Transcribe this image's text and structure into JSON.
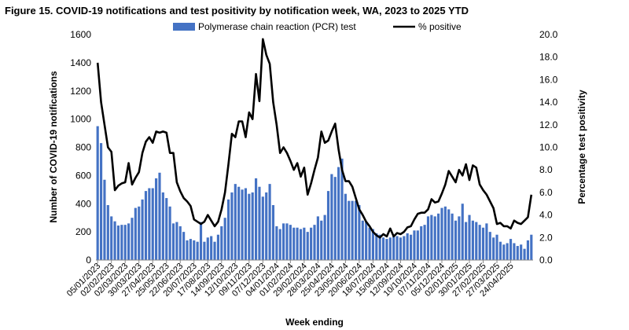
{
  "chart_data": {
    "type": "bar+line",
    "title": "Figure 15. COVID-19 notifications and test positivity by notification week, WA, 2023 to 2025 YTD",
    "xlabel": "Week ending",
    "ylabel": "Number of COVID-19 notifications",
    "y2label": "Percentage test positivity",
    "ylim": [
      0,
      1600
    ],
    "y2lim": [
      0,
      20
    ],
    "yticks": [
      "0",
      "200",
      "400",
      "600",
      "800",
      "1000",
      "1200",
      "1400",
      "1600"
    ],
    "y2ticks": [
      "0.0",
      "2.0",
      "4.0",
      "6.0",
      "8.0",
      "10.0",
      "12.0",
      "14.0",
      "16.0",
      "18.0",
      "20.0"
    ],
    "x_tick_labels": [
      "05/01/2023",
      "02/02/2023",
      "02/03/2023",
      "30/03/2023",
      "27/04/2023",
      "25/05/2023",
      "22/06/2023",
      "20/07/2023",
      "17/08/2023",
      "14/09/2023",
      "12/10/2023",
      "09/11/2023",
      "07/12/2023",
      "04/01/2024",
      "01/02/2024",
      "29/02/2024",
      "28/03/2024",
      "25/04/2024",
      "23/05/2024",
      "20/06/2024",
      "18/07/2024",
      "15/08/2024",
      "12/09/2024",
      "10/10/2024",
      "07/11/2024",
      "05/12/2024",
      "02/01/2025",
      "30/01/2025",
      "27/02/2025",
      "27/03/2025",
      "24/04/2025"
    ],
    "grid": false,
    "legend_position": "top-center",
    "series": [
      {
        "name": "Polymerase chain reaction (PCR) test",
        "type": "bar",
        "axis": "left",
        "color": "#4472C4",
        "values": [
          950,
          830,
          570,
          390,
          310,
          275,
          245,
          250,
          250,
          260,
          300,
          370,
          380,
          430,
          490,
          510,
          510,
          580,
          620,
          480,
          440,
          380,
          260,
          270,
          240,
          200,
          140,
          150,
          140,
          130,
          270,
          130,
          160,
          170,
          130,
          180,
          240,
          300,
          430,
          480,
          540,
          520,
          500,
          510,
          470,
          480,
          580,
          520,
          450,
          480,
          540,
          390,
          240,
          220,
          260,
          260,
          250,
          230,
          230,
          220,
          230,
          200,
          230,
          250,
          310,
          280,
          320,
          490,
          610,
          590,
          660,
          720,
          470,
          420,
          420,
          420,
          390,
          280,
          270,
          230,
          220,
          190,
          180,
          160,
          150,
          160,
          180,
          170,
          160,
          170,
          190,
          180,
          210,
          210,
          240,
          250,
          310,
          320,
          310,
          330,
          370,
          380,
          360,
          330,
          280,
          310,
          400,
          270,
          320,
          280,
          270,
          250,
          230,
          260,
          200,
          160,
          180,
          130,
          110,
          120,
          150,
          120,
          100,
          110,
          80,
          140,
          180
        ]
      },
      {
        "name": "% positive",
        "type": "line",
        "axis": "right",
        "color": "#000000",
        "values": [
          17.5,
          14.0,
          12.0,
          10.0,
          9.6,
          6.2,
          6.6,
          6.8,
          6.9,
          8.6,
          6.7,
          7.3,
          7.8,
          9.5,
          10.5,
          10.9,
          10.4,
          11.4,
          11.3,
          11.4,
          11.3,
          9.5,
          9.5,
          6.9,
          6.1,
          5.5,
          5.2,
          4.8,
          3.6,
          3.4,
          3.2,
          3.4,
          4.0,
          3.5,
          3.0,
          3.4,
          4.5,
          6.0,
          8.5,
          11.2,
          10.9,
          12.3,
          12.3,
          10.9,
          13.1,
          12.5,
          16.5,
          14.1,
          19.6,
          18.2,
          17.4,
          14.0,
          12.0,
          9.5,
          10.0,
          9.5,
          8.8,
          8.0,
          8.6,
          7.4,
          8.2,
          5.8,
          6.8,
          8.0,
          9.1,
          11.4,
          10.4,
          10.6,
          11.4,
          12.1,
          9.8,
          8.0,
          7.0,
          7.0,
          6.5,
          5.5,
          4.5,
          4.0,
          3.4,
          3.0,
          2.5,
          2.2,
          2.0,
          2.3,
          2.1,
          2.8,
          2.1,
          2.4,
          2.3,
          2.5,
          2.9,
          3.0,
          3.6,
          4.1,
          4.2,
          4.2,
          4.5,
          5.4,
          5.1,
          5.2,
          5.9,
          6.7,
          7.9,
          7.4,
          6.9,
          8.0,
          7.5,
          8.5,
          7.1,
          8.4,
          8.2,
          6.7,
          6.2,
          5.8,
          5.2,
          4.6,
          3.2,
          3.3,
          3.0,
          3.0,
          2.8,
          3.5,
          3.3,
          3.2,
          3.5,
          3.8,
          5.8
        ]
      }
    ]
  }
}
